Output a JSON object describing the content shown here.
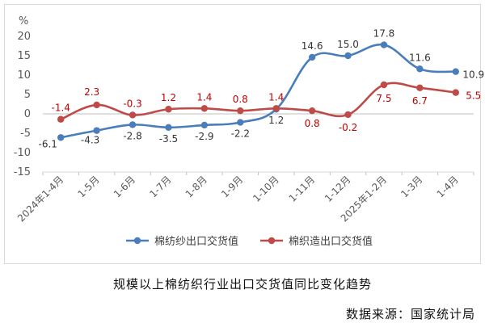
{
  "chart_data": {
    "type": "line",
    "unit": "%",
    "categories": [
      "2024年1-4月",
      "1-5月",
      "1-6月",
      "1-7月",
      "1-8月",
      "1-9月",
      "1-10月",
      "1-11月",
      "1-12月",
      "2025年1-2月",
      "1-3月",
      "1-4月"
    ],
    "ylim": [
      -15,
      20
    ],
    "yticks": [
      -15,
      -10,
      -5,
      0,
      5,
      10,
      15,
      20
    ],
    "grid": false,
    "legend_position": "bottom",
    "series": [
      {
        "name": "棉纺纱出口交货值",
        "color": "#4a7ebb",
        "values": [
          -6.1,
          -4.3,
          -2.8,
          -3.5,
          -2.9,
          -2.2,
          1.2,
          14.6,
          15.0,
          17.8,
          11.6,
          10.9
        ],
        "label_color": "#333333",
        "labels": [
          "-6.1",
          "-4.3",
          "-2.8",
          "-3.5",
          "-2.9",
          "-2.2",
          "1.2",
          "14.6",
          "15.0",
          "17.8",
          "11.6",
          "10.9"
        ]
      },
      {
        "name": "棉织造出口交货值",
        "color": "#be4b48",
        "values": [
          -1.4,
          2.3,
          -0.3,
          1.2,
          1.4,
          0.8,
          1.4,
          0.8,
          -0.2,
          7.5,
          6.7,
          5.5
        ],
        "label_color": "#c00000",
        "labels": [
          "-1.4",
          "2.3",
          "-0.3",
          "1.2",
          "1.4",
          "0.8",
          "1.4",
          "0.8",
          "-0.2",
          "7.5",
          "6.7",
          "5.5"
        ]
      }
    ]
  },
  "caption": "规模以上棉纺织行业出口交货值同比变化趋势",
  "source": "数据来源：国家统计局"
}
